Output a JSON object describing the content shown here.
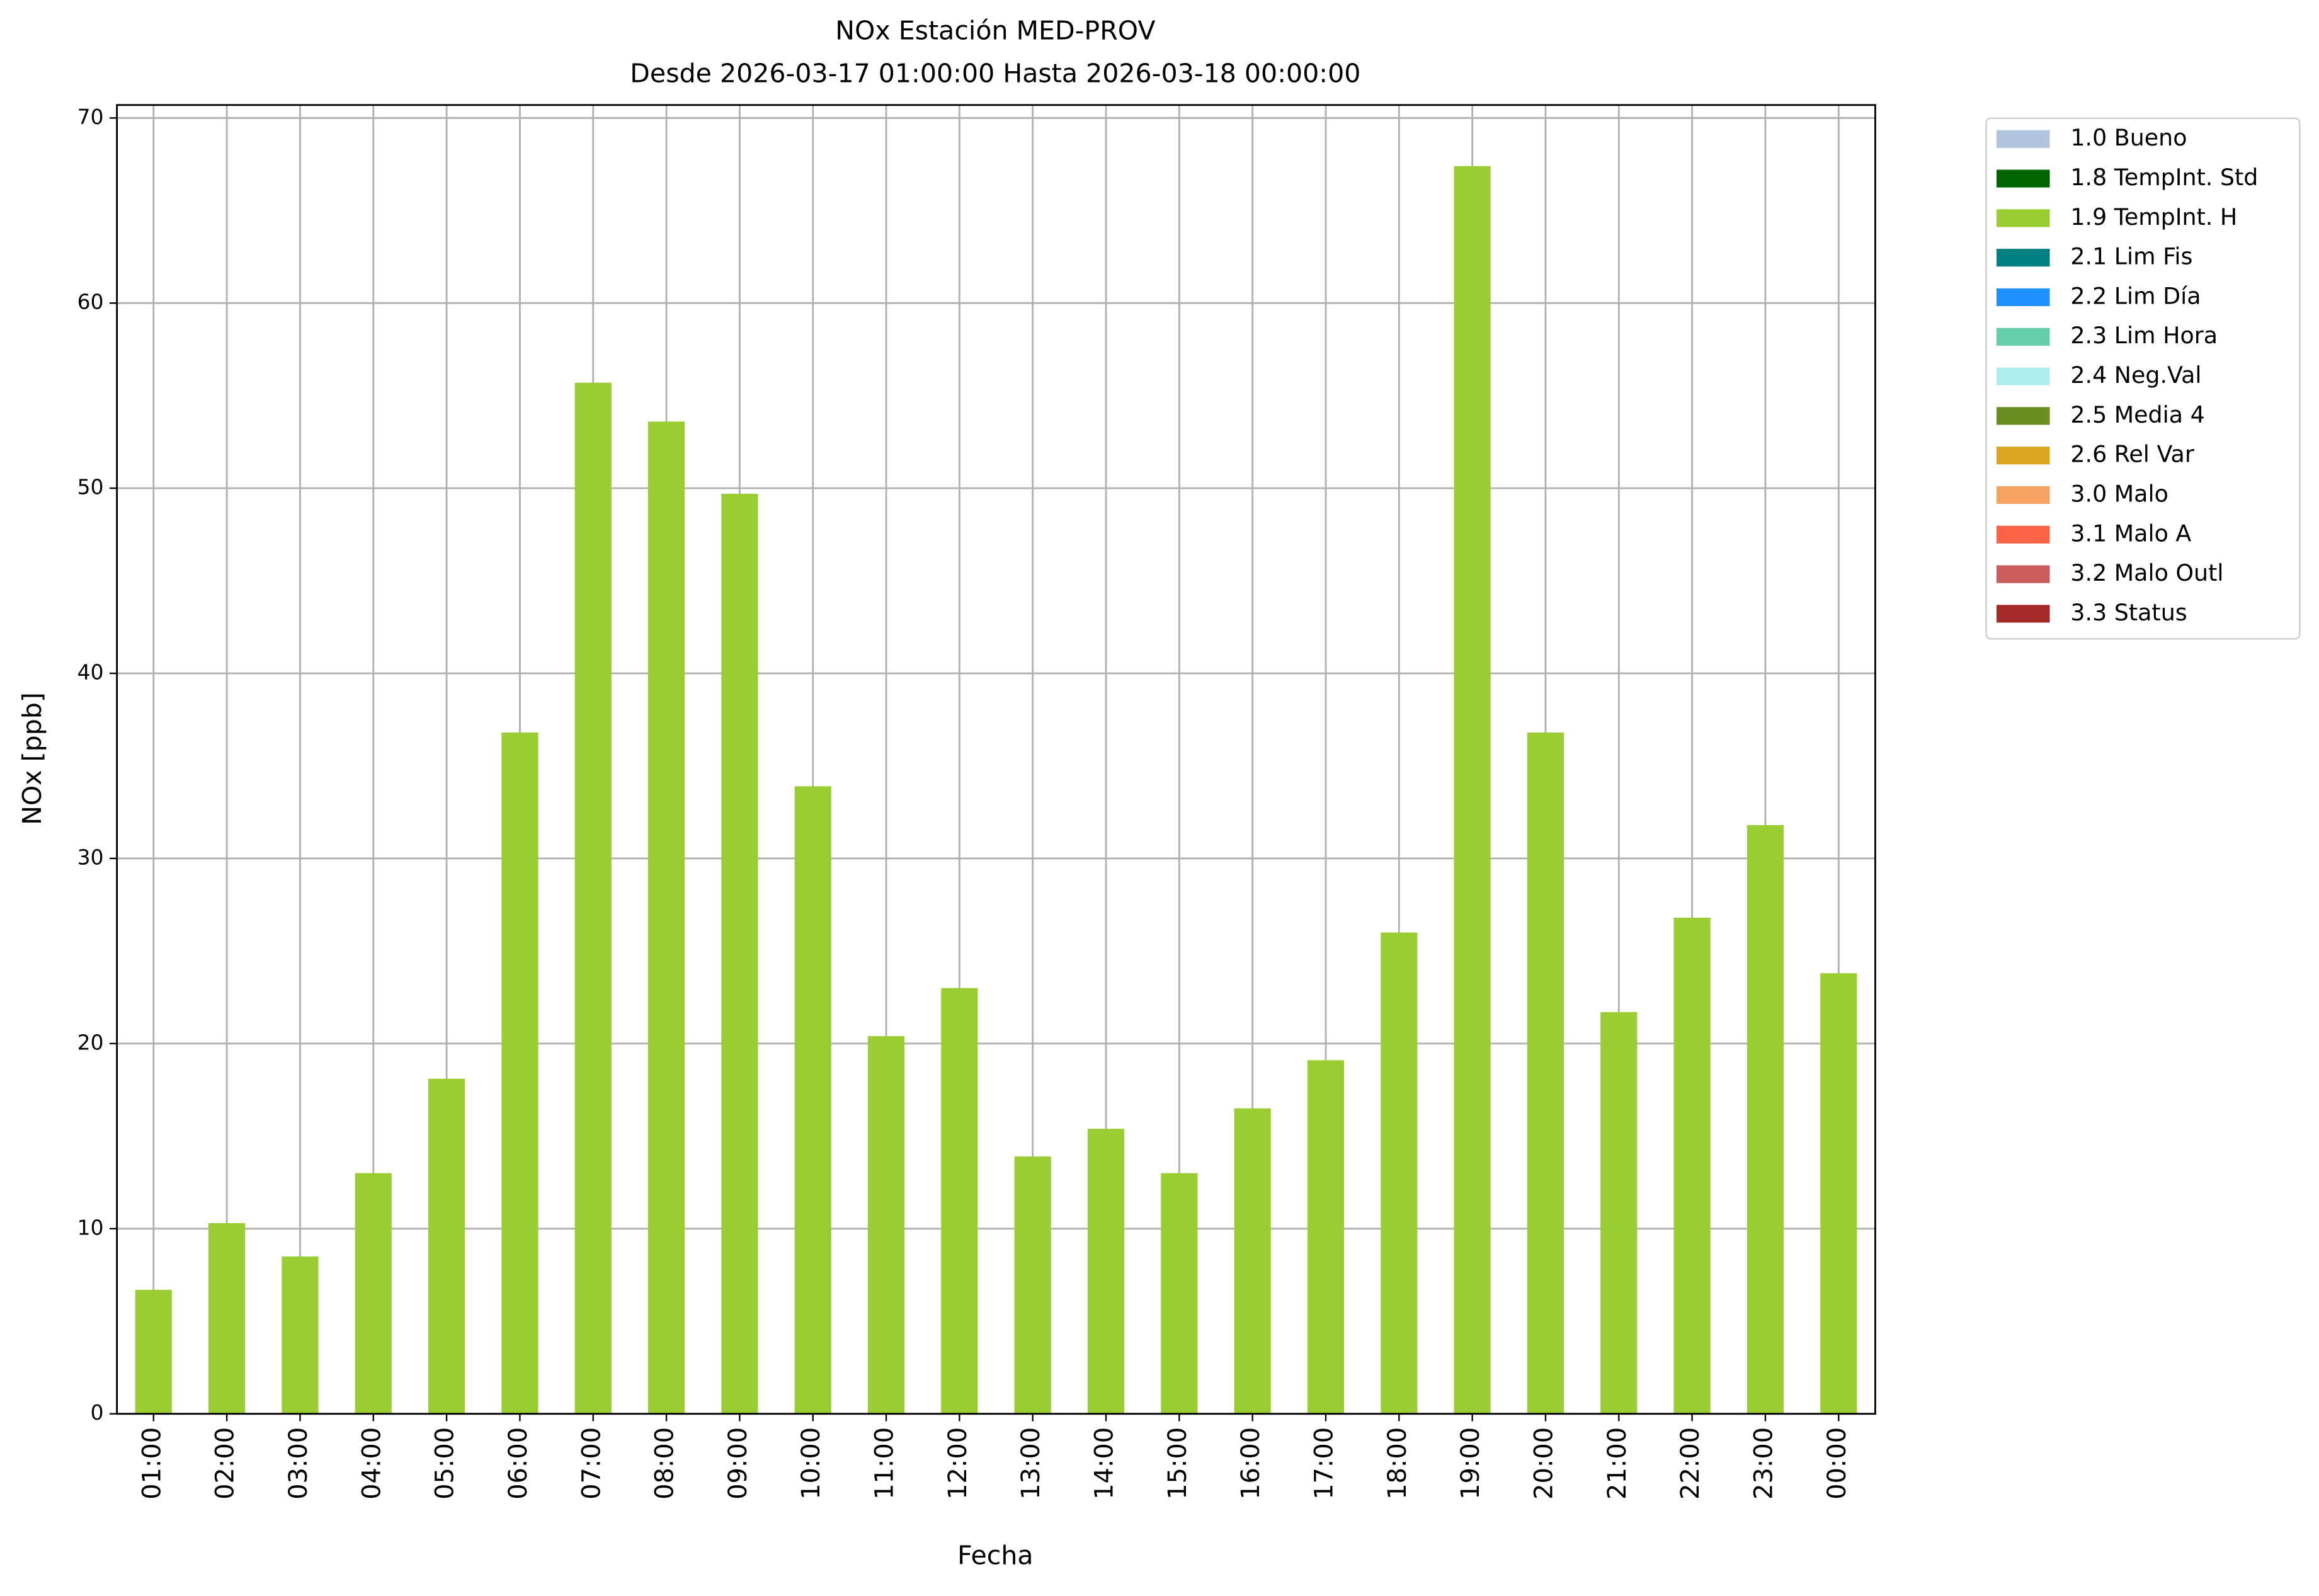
{
  "chart_data": {
    "type": "bar",
    "stacked": true,
    "title": "NOx Estación MED-PROV",
    "subtitle": "Desde 2026-03-17 01:00:00 Hasta 2026-03-18 00:00:00",
    "x_label": "Fecha",
    "y_label": "NOx [ppb]",
    "categories": [
      "01:00",
      "02:00",
      "03:00",
      "04:00",
      "05:00",
      "06:00",
      "07:00",
      "08:00",
      "09:00",
      "10:00",
      "11:00",
      "12:00",
      "13:00",
      "14:00",
      "15:00",
      "16:00",
      "17:00",
      "18:00",
      "19:00",
      "20:00",
      "21:00",
      "22:00",
      "23:00",
      "00:00"
    ],
    "series": [
      {
        "name": "1.0 Bueno",
        "color": "#b0c4de",
        "values": [
          null,
          null,
          null,
          null,
          null,
          null,
          null,
          null,
          null,
          null,
          null,
          null,
          null,
          null,
          null,
          null,
          null,
          null,
          null,
          null,
          null,
          null,
          null,
          null
        ]
      },
      {
        "name": "1.8 TempInt. Std",
        "color": "#006400",
        "values": [
          null,
          null,
          null,
          null,
          null,
          null,
          null,
          null,
          null,
          null,
          null,
          null,
          null,
          null,
          null,
          null,
          null,
          null,
          null,
          null,
          null,
          null,
          null,
          null
        ]
      },
      {
        "name": "1.9 TempInt. H",
        "color": "#9acd32",
        "values": [
          6.7,
          10.3,
          8.5,
          13.0,
          18.1,
          36.8,
          55.7,
          53.6,
          49.7,
          33.9,
          20.4,
          23.0,
          13.9,
          15.4,
          13.0,
          16.5,
          19.1,
          26.0,
          67.4,
          36.8,
          21.7,
          26.8,
          31.8,
          23.8
        ]
      },
      {
        "name": "2.1 Lim Fis",
        "color": "#008080",
        "values": [
          null,
          null,
          null,
          null,
          null,
          null,
          null,
          null,
          null,
          null,
          null,
          null,
          null,
          null,
          null,
          null,
          null,
          null,
          null,
          null,
          null,
          null,
          null,
          null
        ]
      },
      {
        "name": "2.2 Lim Día",
        "color": "#1e90ff",
        "values": [
          null,
          null,
          null,
          null,
          null,
          null,
          null,
          null,
          null,
          null,
          null,
          null,
          null,
          null,
          null,
          null,
          null,
          null,
          null,
          null,
          null,
          null,
          null,
          null
        ]
      },
      {
        "name": "2.3 Lim Hora",
        "color": "#66cdaa",
        "values": [
          null,
          null,
          null,
          null,
          null,
          null,
          null,
          null,
          null,
          null,
          null,
          null,
          null,
          null,
          null,
          null,
          null,
          null,
          null,
          null,
          null,
          null,
          null,
          null
        ]
      },
      {
        "name": "2.4 Neg.Val",
        "color": "#afeeee",
        "values": [
          null,
          null,
          null,
          null,
          null,
          null,
          null,
          null,
          null,
          null,
          null,
          null,
          null,
          null,
          null,
          null,
          null,
          null,
          null,
          null,
          null,
          null,
          null,
          null
        ]
      },
      {
        "name": "2.5 Media 4",
        "color": "#6b8e23",
        "values": [
          null,
          null,
          null,
          null,
          null,
          null,
          null,
          null,
          null,
          null,
          null,
          null,
          null,
          null,
          null,
          null,
          null,
          null,
          null,
          null,
          null,
          null,
          null,
          null
        ]
      },
      {
        "name": "2.6 Rel Var",
        "color": "#daa520",
        "values": [
          null,
          null,
          null,
          null,
          null,
          null,
          null,
          null,
          null,
          null,
          null,
          null,
          null,
          null,
          null,
          null,
          null,
          null,
          null,
          null,
          null,
          null,
          null,
          null
        ]
      },
      {
        "name": "3.0 Malo",
        "color": "#f4a460",
        "values": [
          null,
          null,
          null,
          null,
          null,
          null,
          null,
          null,
          null,
          null,
          null,
          null,
          null,
          null,
          null,
          null,
          null,
          null,
          null,
          null,
          null,
          null,
          null,
          null
        ]
      },
      {
        "name": "3.1 Malo A",
        "color": "#ff6347",
        "values": [
          null,
          null,
          null,
          null,
          null,
          null,
          null,
          null,
          null,
          null,
          null,
          null,
          null,
          null,
          null,
          null,
          null,
          null,
          null,
          null,
          null,
          null,
          null,
          null
        ]
      },
      {
        "name": "3.2 Malo Outl",
        "color": "#cd5c5c",
        "values": [
          null,
          null,
          null,
          null,
          null,
          null,
          null,
          null,
          null,
          null,
          null,
          null,
          null,
          null,
          null,
          null,
          null,
          null,
          null,
          null,
          null,
          null,
          null,
          null
        ]
      },
      {
        "name": "3.3 Status",
        "color": "#a52a2a",
        "values": [
          null,
          null,
          null,
          null,
          null,
          null,
          null,
          null,
          null,
          null,
          null,
          null,
          null,
          null,
          null,
          null,
          null,
          null,
          null,
          null,
          null,
          null,
          null,
          null
        ]
      }
    ],
    "ylim": [
      0,
      70.7
    ],
    "yticks": [
      0,
      10,
      20,
      30,
      40,
      50,
      60,
      70
    ],
    "grid": true,
    "legend": "outside-right"
  }
}
